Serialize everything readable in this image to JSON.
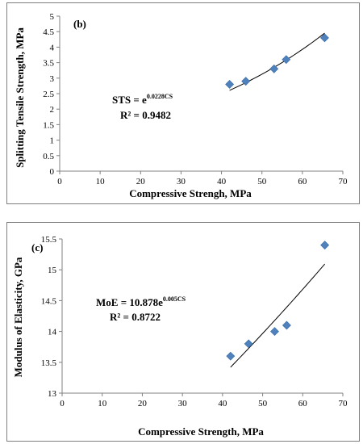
{
  "chart_data": [
    {
      "type": "scatter",
      "panel_label": "(b)",
      "xlabel": "Compressive Strengh, MPa",
      "ylabel": "Splitting Tensile Strength, MPa",
      "xlim": [
        0,
        70
      ],
      "ylim": [
        0,
        5
      ],
      "xticks": [
        0,
        10,
        20,
        30,
        40,
        50,
        60,
        70
      ],
      "yticks": [
        0,
        0.5,
        1,
        1.5,
        2,
        2.5,
        3,
        3.5,
        4,
        4.5,
        5
      ],
      "ytick_labels": [
        "0",
        "0.5",
        "1",
        "1.5",
        "2",
        "2.5",
        "3",
        "3.5",
        "4",
        "4.5",
        "5"
      ],
      "x": [
        42,
        46,
        53,
        56,
        65.5
      ],
      "y": [
        2.8,
        2.9,
        3.3,
        3.6,
        4.3
      ],
      "trendline": {
        "type": "exponential",
        "a": 1.0,
        "b": 0.0228,
        "x_range": [
          42,
          65.5
        ]
      },
      "equation_base": "STS = e",
      "equation_exp": "0.0228CS",
      "r2_label": "R² = 0.9482",
      "marker_color": "#4f81bd",
      "grid": false
    },
    {
      "type": "scatter",
      "panel_label": "(c)",
      "xlabel": "Compressive Strength, MPa",
      "ylabel": "Modulus of Elasticity, GPa",
      "xlim": [
        0,
        70
      ],
      "ylim": [
        13,
        15.5
      ],
      "xticks": [
        0,
        10,
        20,
        30,
        40,
        50,
        60,
        70
      ],
      "yticks": [
        13,
        13.5,
        14,
        14.5,
        15,
        15.5
      ],
      "ytick_labels": [
        "13",
        "13.5",
        "14",
        "14.5",
        "15",
        "15.5"
      ],
      "x": [
        42,
        46.5,
        53,
        56,
        65.5
      ],
      "y": [
        13.6,
        13.8,
        14.0,
        14.1,
        15.4
      ],
      "trendline": {
        "type": "exponential",
        "a": 10.878,
        "b": 0.005,
        "x_range": [
          42,
          65.5
        ]
      },
      "equation_base": "MoE = 10.878e",
      "equation_exp": "0.005CS",
      "r2_label": "R² = 0.8722",
      "marker_color": "#4f81bd",
      "grid": false
    }
  ]
}
